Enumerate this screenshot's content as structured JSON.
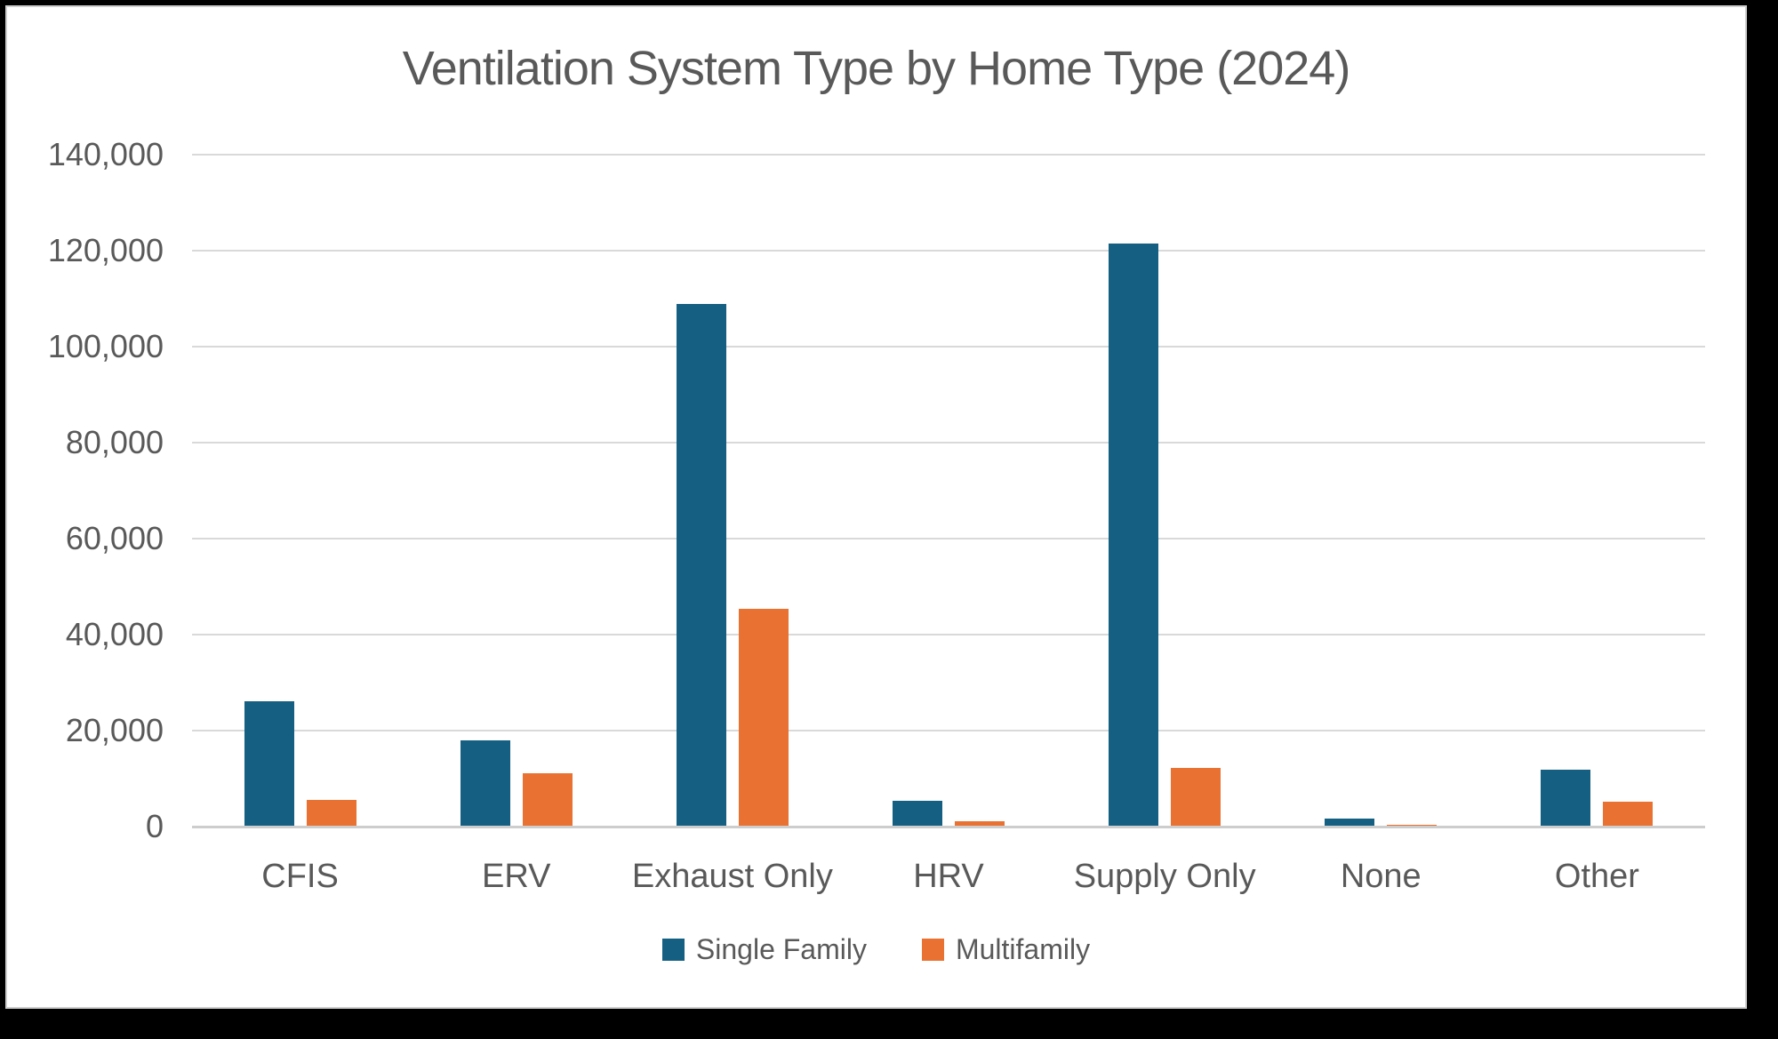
{
  "theme": {
    "frame_background": "#000000",
    "card_background": "#FFFFFF",
    "text_color": "#595959",
    "gridline_color": "#D9D9D9",
    "axis_line_color": "#CDCDCD"
  },
  "chart_data": {
    "type": "bar",
    "title": "Ventilation System Type by Home Type (2024)",
    "categories": [
      "CFIS",
      "ERV",
      "Exhaust Only",
      "HRV",
      "Supply Only",
      "None",
      "Other"
    ],
    "series": [
      {
        "name": "Single Family",
        "color": "#156082",
        "values": [
          26100,
          18000,
          108900,
          5300,
          121400,
          1600,
          11900
        ]
      },
      {
        "name": "Multifamily",
        "color": "#E97132",
        "values": [
          5600,
          11200,
          45400,
          1100,
          12200,
          400,
          5200
        ]
      }
    ],
    "xlabel": "",
    "ylabel": "",
    "ylim": [
      0,
      140000
    ],
    "ytick_interval": 20000,
    "ytick_labels": [
      "0",
      "20,000",
      "40,000",
      "60,000",
      "80,000",
      "100,000",
      "120,000",
      "140,000"
    ],
    "grid": "horizontal-only",
    "legend_position": "bottom"
  }
}
